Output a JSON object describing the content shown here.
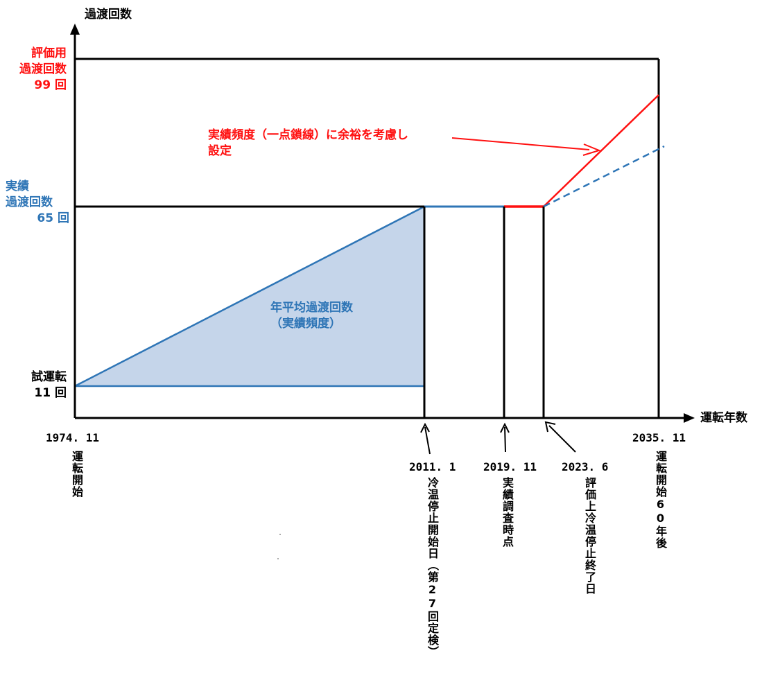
{
  "axes": {
    "y_title": "過渡回数",
    "x_title": "運転年数"
  },
  "y_levels": {
    "evaluation": {
      "line1": "評価用",
      "line2": "過渡回数",
      "line3": "99 回",
      "value": 99
    },
    "actual": {
      "line1": "実績",
      "line2": "過渡回数",
      "line3": "65 回",
      "value": 65
    },
    "trial": {
      "line1": "試運転",
      "line2": "11 回",
      "value": 11
    }
  },
  "annotations": {
    "red_note_line1": "実績頻度（一点鎖線）に余裕を考慮し",
    "red_note_line2": "設定",
    "blue_area_line1": "年平均過渡回数",
    "blue_area_line2": "（実績頻度）"
  },
  "timeline": [
    {
      "id": "start",
      "date": "1974. 11",
      "label": "運転開始"
    },
    {
      "id": "cold-stop-start",
      "date": "2011. 1",
      "label": "冷温停止開始日（第27回定検）"
    },
    {
      "id": "survey",
      "date": "2019. 11",
      "label": "実績調査時点"
    },
    {
      "id": "cold-stop-end",
      "date": "2023. 6",
      "label": "評価上冷温停止終了日"
    },
    {
      "id": "sixty-years",
      "date": "2035. 11",
      "label": "運転開始60年後"
    }
  ],
  "colors": {
    "evaluation": "#ff1010",
    "actual": "#2e75b6",
    "fill": "#c5d5ea",
    "frame": "#000000"
  }
}
